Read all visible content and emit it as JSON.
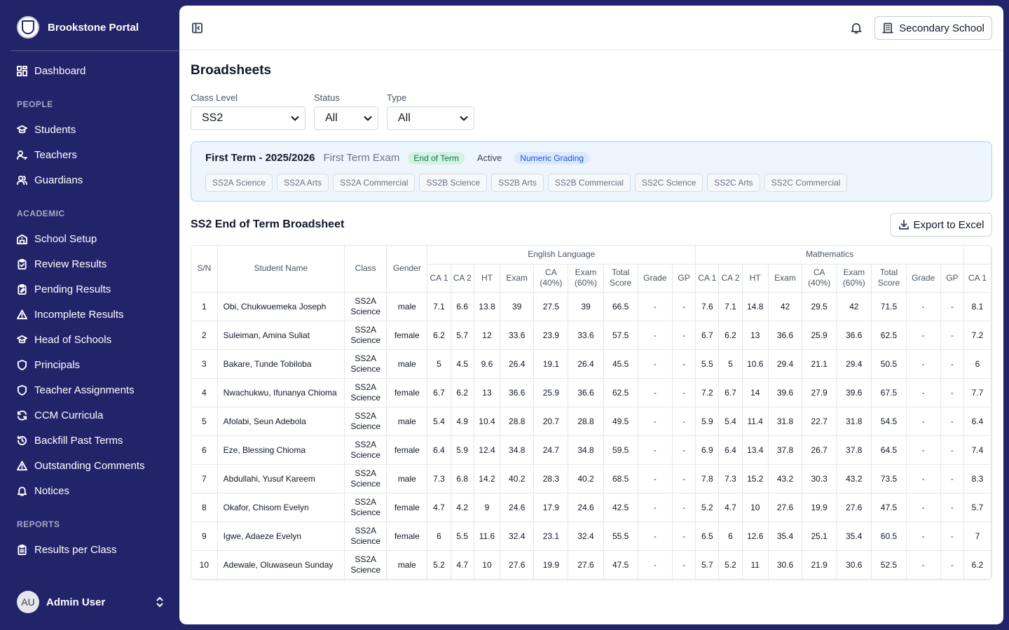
{
  "sidebar": {
    "brand": "Brookstone Portal",
    "dashboard": "Dashboard",
    "sections": {
      "people": "PEOPLE",
      "academic": "ACADEMIC",
      "reports": "REPORTS"
    },
    "people": [
      "Students",
      "Teachers",
      "Guardians"
    ],
    "academic": [
      "School Setup",
      "Review Results",
      "Pending Results",
      "Incomplete Results",
      "Head of Schools",
      "Principals",
      "Teacher Assignments",
      "CCM Curricula",
      "Backfill Past Terms",
      "Outstanding Comments",
      "Notices"
    ],
    "reports": [
      "Results per Class"
    ],
    "user": {
      "initials": "AU",
      "name": "Admin User"
    }
  },
  "topbar": {
    "school": "Secondary School"
  },
  "page": {
    "title": "Broadsheets"
  },
  "filters": {
    "class_level": {
      "label": "Class Level",
      "value": "SS2"
    },
    "status": {
      "label": "Status",
      "value": "All"
    },
    "type": {
      "label": "Type",
      "value": "All"
    }
  },
  "term": {
    "name": "First Term - 2025/2026",
    "exam": "First Term Exam",
    "badge_end": "End of Term",
    "badge_active": "Active",
    "badge_grading": "Numeric Grading",
    "classes": [
      "SS2A Science",
      "SS2A Arts",
      "SS2A Commercial",
      "SS2B Science",
      "SS2B Arts",
      "SS2B Commercial",
      "SS2C Science",
      "SS2C Arts",
      "SS2C Commercial"
    ]
  },
  "broadsheet": {
    "title": "SS2 End of Term Broadsheet",
    "export_label": "Export to Excel",
    "headers": {
      "sn": "S/N",
      "name": "Student Name",
      "class": "Class",
      "gender": "Gender"
    },
    "subjects": [
      "English Language",
      "Mathematics"
    ],
    "sub_headers": [
      "CA 1",
      "CA 2",
      "HT",
      "Exam",
      "CA (40%)",
      "Exam (60%)",
      "Total Score",
      "Grade",
      "GP"
    ],
    "partial_header": "CA 1",
    "rows": [
      {
        "sn": "1",
        "name": "Obi, Chukwuemeka Joseph",
        "class": "SS2A Science",
        "gender": "male",
        "eng": [
          "7.1",
          "6.6",
          "13.8",
          "39",
          "27.5",
          "39",
          "66.5",
          "-",
          "-"
        ],
        "math": [
          "7.6",
          "7.1",
          "14.8",
          "42",
          "29.5",
          "42",
          "71.5",
          "-",
          "-"
        ],
        "next": "8.1"
      },
      {
        "sn": "2",
        "name": "Suleiman, Amina Suliat",
        "class": "SS2A Science",
        "gender": "female",
        "eng": [
          "6.2",
          "5.7",
          "12",
          "33.6",
          "23.9",
          "33.6",
          "57.5",
          "-",
          "-"
        ],
        "math": [
          "6.7",
          "6.2",
          "13",
          "36.6",
          "25.9",
          "36.6",
          "62.5",
          "-",
          "-"
        ],
        "next": "7.2"
      },
      {
        "sn": "3",
        "name": "Bakare, Tunde Tobiloba",
        "class": "SS2A Science",
        "gender": "male",
        "eng": [
          "5",
          "4.5",
          "9.6",
          "26.4",
          "19.1",
          "26.4",
          "45.5",
          "-",
          "-"
        ],
        "math": [
          "5.5",
          "5",
          "10.6",
          "29.4",
          "21.1",
          "29.4",
          "50.5",
          "-",
          "-"
        ],
        "next": "6"
      },
      {
        "sn": "4",
        "name": "Nwachukwu, Ifunanya Chioma",
        "class": "SS2A Science",
        "gender": "female",
        "eng": [
          "6.7",
          "6.2",
          "13",
          "36.6",
          "25.9",
          "36.6",
          "62.5",
          "-",
          "-"
        ],
        "math": [
          "7.2",
          "6.7",
          "14",
          "39.6",
          "27.9",
          "39.6",
          "67.5",
          "-",
          "-"
        ],
        "next": "7.7"
      },
      {
        "sn": "5",
        "name": "Afolabi, Seun Adebola",
        "class": "SS2A Science",
        "gender": "male",
        "eng": [
          "5.4",
          "4.9",
          "10.4",
          "28.8",
          "20.7",
          "28.8",
          "49.5",
          "-",
          "-"
        ],
        "math": [
          "5.9",
          "5.4",
          "11.4",
          "31.8",
          "22.7",
          "31.8",
          "54.5",
          "-",
          "-"
        ],
        "next": "6.4"
      },
      {
        "sn": "6",
        "name": "Eze, Blessing Chioma",
        "class": "SS2A Science",
        "gender": "female",
        "eng": [
          "6.4",
          "5.9",
          "12.4",
          "34.8",
          "24.7",
          "34.8",
          "59.5",
          "-",
          "-"
        ],
        "math": [
          "6.9",
          "6.4",
          "13.4",
          "37.8",
          "26.7",
          "37.8",
          "64.5",
          "-",
          "-"
        ],
        "next": "7.4"
      },
      {
        "sn": "7",
        "name": "Abdullahi, Yusuf Kareem",
        "class": "SS2A Science",
        "gender": "male",
        "eng": [
          "7.3",
          "6.8",
          "14.2",
          "40.2",
          "28.3",
          "40.2",
          "68.5",
          "-",
          "-"
        ],
        "math": [
          "7.8",
          "7.3",
          "15.2",
          "43.2",
          "30.3",
          "43.2",
          "73.5",
          "-",
          "-"
        ],
        "next": "8.3"
      },
      {
        "sn": "8",
        "name": "Okafor, Chisom Evelyn",
        "class": "SS2A Science",
        "gender": "female",
        "eng": [
          "4.7",
          "4.2",
          "9",
          "24.6",
          "17.9",
          "24.6",
          "42.5",
          "-",
          "-"
        ],
        "math": [
          "5.2",
          "4.7",
          "10",
          "27.6",
          "19.9",
          "27.6",
          "47.5",
          "-",
          "-"
        ],
        "next": "5.7"
      },
      {
        "sn": "9",
        "name": "Igwe, Adaeze Evelyn",
        "class": "SS2A Science",
        "gender": "female",
        "eng": [
          "6",
          "5.5",
          "11.6",
          "32.4",
          "23.1",
          "32.4",
          "55.5",
          "-",
          "-"
        ],
        "math": [
          "6.5",
          "6",
          "12.6",
          "35.4",
          "25.1",
          "35.4",
          "60.5",
          "-",
          "-"
        ],
        "next": "7"
      },
      {
        "sn": "10",
        "name": "Adewale, Oluwaseun Sunday",
        "class": "SS2A Science",
        "gender": "male",
        "eng": [
          "5.2",
          "4.7",
          "10",
          "27.6",
          "19.9",
          "27.6",
          "47.5",
          "-",
          "-"
        ],
        "math": [
          "5.7",
          "5.2",
          "11",
          "30.6",
          "21.9",
          "30.6",
          "52.5",
          "-",
          "-"
        ],
        "next": "6.2"
      }
    ]
  }
}
